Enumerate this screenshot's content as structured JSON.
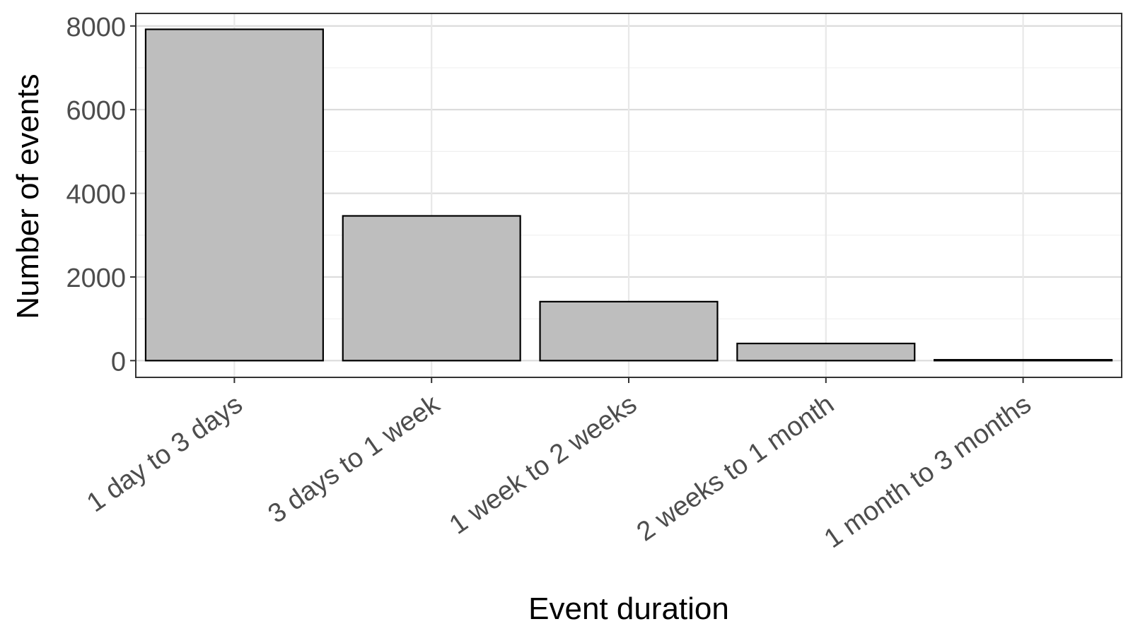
{
  "chart_data": {
    "type": "bar",
    "categories": [
      "1 day to 3 days",
      "3 days to 1 week",
      "1 week to 2 weeks",
      "2 weeks to 1 month",
      "1 month to 3 months"
    ],
    "values": [
      7920,
      3460,
      1410,
      410,
      20
    ],
    "xlabel": "Event duration",
    "ylabel": "Number of events",
    "ylim": [
      -400,
      8300
    ],
    "yticks": [
      0,
      2000,
      4000,
      6000,
      8000
    ],
    "grid": true,
    "legend": "none",
    "bar_fill": "#bebebe",
    "bar_stroke": "#000000"
  }
}
